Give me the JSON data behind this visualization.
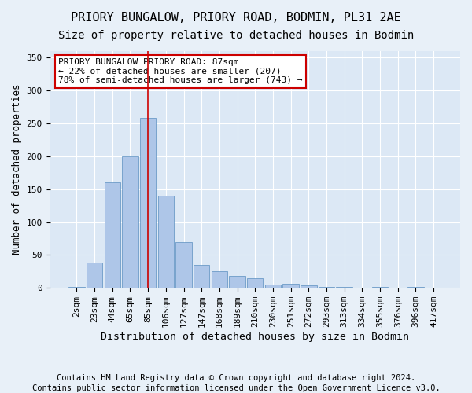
{
  "title": "PRIORY BUNGALOW, PRIORY ROAD, BODMIN, PL31 2AE",
  "subtitle": "Size of property relative to detached houses in Bodmin",
  "xlabel": "Distribution of detached houses by size in Bodmin",
  "ylabel": "Number of detached properties",
  "footnote1": "Contains HM Land Registry data © Crown copyright and database right 2024.",
  "footnote2": "Contains public sector information licensed under the Open Government Licence v3.0.",
  "bar_labels": [
    "2sqm",
    "23sqm",
    "44sqm",
    "65sqm",
    "85sqm",
    "106sqm",
    "127sqm",
    "147sqm",
    "168sqm",
    "189sqm",
    "210sqm",
    "230sqm",
    "251sqm",
    "272sqm",
    "293sqm",
    "313sqm",
    "334sqm",
    "355sqm",
    "376sqm",
    "396sqm",
    "417sqm"
  ],
  "bar_values": [
    2,
    38,
    160,
    200,
    258,
    140,
    70,
    35,
    25,
    18,
    15,
    5,
    6,
    4,
    2,
    1,
    0,
    2,
    0,
    2,
    0
  ],
  "bar_color": "#aec6e8",
  "bar_edge_color": "#5a8fc0",
  "vline_x": 4,
  "vline_color": "#cc0000",
  "annotation_text": "PRIORY BUNGALOW PRIORY ROAD: 87sqm\n← 22% of detached houses are smaller (207)\n78% of semi-detached houses are larger (743) →",
  "annotation_box_edge": "#cc0000",
  "annotation_box_bg": "#ffffff",
  "ylim": [
    0,
    360
  ],
  "yticks": [
    0,
    50,
    100,
    150,
    200,
    250,
    300,
    350
  ],
  "bg_color": "#e8f0f8",
  "plot_bg_color": "#dce8f5",
  "title_fontsize": 11,
  "subtitle_fontsize": 10,
  "axis_label_fontsize": 9,
  "tick_fontsize": 8,
  "footnote_fontsize": 7.5
}
